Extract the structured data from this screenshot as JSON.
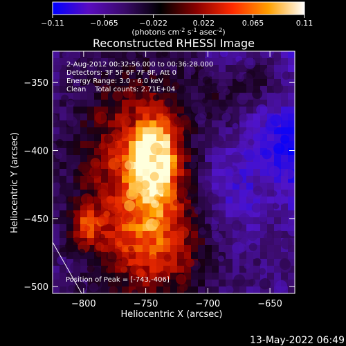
{
  "colorbar": {
    "ticks": [
      "-0.11",
      "-0.065",
      "-0.022",
      "0.022",
      "0.065",
      "0.11"
    ],
    "unit_parts": [
      "(photons cm",
      "-2",
      " s",
      "-1",
      " asec",
      "-2",
      ")"
    ]
  },
  "footer": {
    "timestamp": "13-May-2022 06:49"
  },
  "chart_data": {
    "type": "heatmap",
    "title": "Reconstructed RHESSI Image",
    "xlabel": "Heliocentric X (arcsec)",
    "ylabel": "Heliocentric Y (arcsec)",
    "xlim": [
      -825,
      -630
    ],
    "ylim": [
      -505,
      -327
    ],
    "xticks": [
      -800,
      -750,
      -700,
      -650
    ],
    "yticks": [
      -350,
      -400,
      -450,
      -500
    ],
    "xtick_labels": [
      "-800",
      "-750",
      "-700",
      "-650"
    ],
    "ytick_labels": [
      "-350",
      "-400",
      "-450",
      "-500"
    ],
    "color_range": [
      -0.11,
      0.11
    ],
    "colormap": [
      "#0000ff",
      "#5a0cc0",
      "#3a0a6a",
      "#000000",
      "#8a0000",
      "#ff2a00",
      "#ffa000",
      "#ffffff"
    ],
    "annotations": [
      "2-Aug-2012 00:32:56.000 to 00:36:28.000",
      "Detectors: 3F 5F 6F 7F 8F, Att 0",
      "Energy Range: 3.0 - 6.0 keV",
      "Clean    Total counts: 2.71E+04"
    ],
    "peak_label": "Position of Peak = [-743,-406]",
    "peak": [
      -743,
      -406
    ]
  }
}
